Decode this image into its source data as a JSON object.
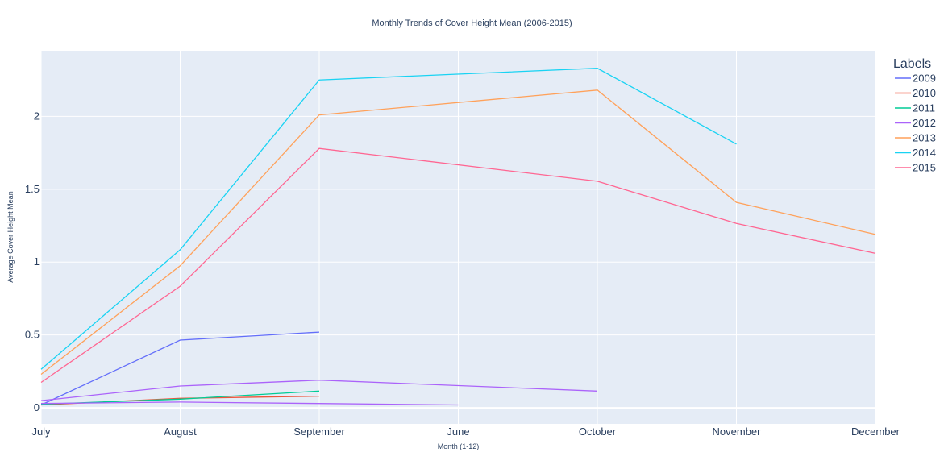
{
  "chart_data": {
    "type": "line",
    "title": "Monthly Trends of Cover Height Mean (2006-2015)",
    "xlabel": "Month (1-12)",
    "ylabel": "Average Cover Height Mean",
    "categories": [
      "July",
      "August",
      "September",
      "June",
      "October",
      "November",
      "December"
    ],
    "yticks": [
      0,
      0.5,
      1,
      1.5,
      2
    ],
    "ytick_labels": [
      "0",
      "0.5",
      "1",
      "1.5",
      "2"
    ],
    "ylim": [
      -0.11,
      2.45
    ],
    "grid": true,
    "legend_title": "Labels",
    "legend_position": "top-right",
    "series": [
      {
        "name": "2009",
        "color": "#636efa",
        "x": [
          0,
          1,
          2
        ],
        "values": [
          0.02,
          0.465,
          0.52
        ]
      },
      {
        "name": "2010",
        "color": "#ef553b",
        "x": [
          0,
          1,
          2
        ],
        "values": [
          0.02,
          0.065,
          0.08
        ]
      },
      {
        "name": "2011",
        "color": "#00cc96",
        "x": [
          0,
          1,
          2
        ],
        "values": [
          0.025,
          0.06,
          0.115
        ]
      },
      {
        "name": "2012",
        "color": "#ab63fa",
        "x": [
          0,
          1,
          2,
          4
        ],
        "values": [
          0.05,
          0.15,
          0.19,
          0.115
        ]
      },
      {
        "name": "2012",
        "color": "#ab63fa",
        "x": [
          0,
          1,
          2,
          3
        ],
        "values": [
          0.03,
          0.04,
          0.03,
          0.02
        ]
      },
      {
        "name": "2013",
        "color": "#ffa15a",
        "x": [
          0,
          1,
          2,
          4,
          5,
          6
        ],
        "values": [
          0.23,
          0.975,
          2.01,
          2.18,
          1.41,
          1.19
        ]
      },
      {
        "name": "2014",
        "color": "#19d3f3",
        "x": [
          0,
          1,
          2,
          4,
          5
        ],
        "values": [
          0.265,
          1.085,
          2.25,
          2.33,
          1.81
        ]
      },
      {
        "name": "2015",
        "color": "#ff6692",
        "x": [
          0,
          1,
          2,
          4,
          5,
          6
        ],
        "values": [
          0.175,
          0.835,
          1.78,
          1.555,
          1.265,
          1.06
        ]
      }
    ],
    "legend_entries": [
      {
        "name": "2009",
        "color": "#636efa"
      },
      {
        "name": "2010",
        "color": "#ef553b"
      },
      {
        "name": "2011",
        "color": "#00cc96"
      },
      {
        "name": "2012",
        "color": "#ab63fa"
      },
      {
        "name": "2013",
        "color": "#ffa15a"
      },
      {
        "name": "2014",
        "color": "#19d3f3"
      },
      {
        "name": "2015",
        "color": "#ff6692"
      }
    ]
  }
}
